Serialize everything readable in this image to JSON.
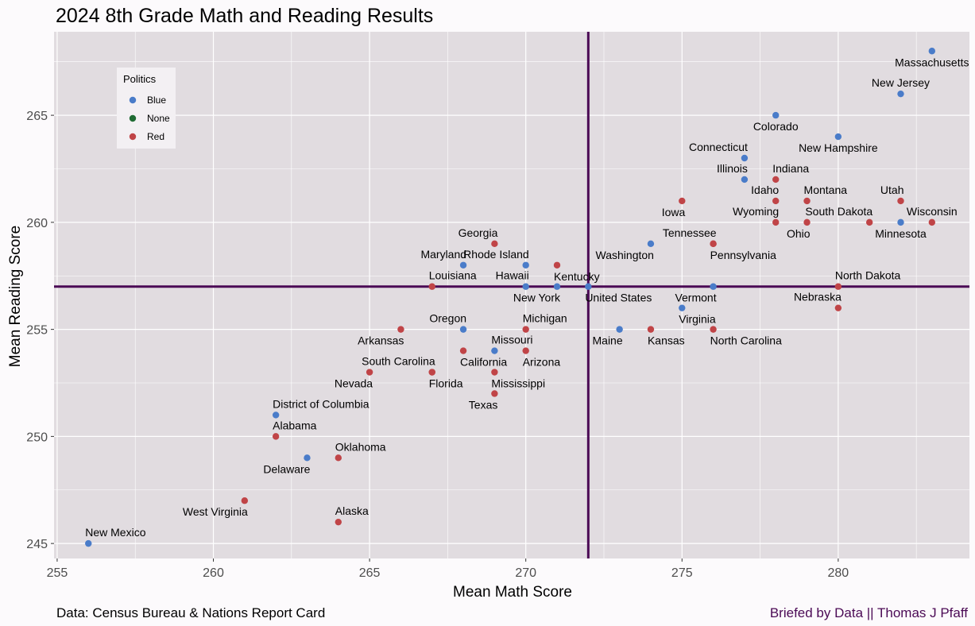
{
  "chart_data": {
    "type": "scatter",
    "title": "2024 8th Grade Math and Reading Results",
    "xlabel": "Mean Math Score",
    "ylabel": "Mean Reading Score",
    "xlim": [
      254.9,
      284.2
    ],
    "ylim": [
      244.3,
      268.9
    ],
    "x_ticks": [
      255,
      260,
      265,
      270,
      275,
      280
    ],
    "y_ticks": [
      245,
      250,
      255,
      260,
      265
    ],
    "grid": true,
    "reference_lines": {
      "x": 272,
      "y": 257,
      "color": "#4B0A55"
    },
    "legend": {
      "title": "Politics",
      "position": "top-left",
      "entries": [
        {
          "label": "Blue",
          "color": "#4A7CC9"
        },
        {
          "label": "None",
          "color": "#1F6B33"
        },
        {
          "label": "Red",
          "color": "#C04447"
        }
      ]
    },
    "colors": {
      "Blue": "#4A7CC9",
      "None": "#1F6B33",
      "Red": "#C04447"
    },
    "points": [
      {
        "label": "Massachusetts",
        "x": 283,
        "y": 268,
        "party": "Blue",
        "lpos": "below"
      },
      {
        "label": "New Jersey",
        "x": 282,
        "y": 266,
        "party": "Blue",
        "lpos": "above"
      },
      {
        "label": "Colorado",
        "x": 278,
        "y": 265,
        "party": "Blue",
        "lpos": "below"
      },
      {
        "label": "New Hampshire",
        "x": 280,
        "y": 264,
        "party": "Blue",
        "lpos": "below"
      },
      {
        "label": "Connecticut",
        "x": 277,
        "y": 263,
        "party": "Blue",
        "lpos": "above-left"
      },
      {
        "label": "Illinois",
        "x": 277,
        "y": 262,
        "party": "Blue",
        "lpos": "above-left"
      },
      {
        "label": "Indiana",
        "x": 278,
        "y": 262,
        "party": "Red",
        "lpos": "above-right"
      },
      {
        "label": "Idaho",
        "x": 278,
        "y": 261,
        "party": "Red",
        "lpos": "above-left"
      },
      {
        "label": "Montana",
        "x": 279,
        "y": 261,
        "party": "Red",
        "lpos": "above-right"
      },
      {
        "label": "Utah",
        "x": 282,
        "y": 261,
        "party": "Red",
        "lpos": "above-left"
      },
      {
        "label": "Iowa",
        "x": 275,
        "y": 261,
        "party": "Red",
        "lpos": "below-left"
      },
      {
        "label": "Wyoming",
        "x": 278,
        "y": 260,
        "party": "Red",
        "lpos": "above-left"
      },
      {
        "label": "Ohio",
        "x": 279,
        "y": 260,
        "party": "Red",
        "lpos": "below-left"
      },
      {
        "label": "South Dakota",
        "x": 281,
        "y": 260,
        "party": "Red",
        "lpos": "above-left"
      },
      {
        "label": "Minnesota",
        "x": 282,
        "y": 260,
        "party": "Blue",
        "lpos": "below"
      },
      {
        "label": "Wisconsin",
        "x": 283,
        "y": 260,
        "party": "Red",
        "lpos": "above"
      },
      {
        "label": "Tennessee",
        "x": 276,
        "y": 259,
        "party": "Red",
        "lpos": "above-left"
      },
      {
        "label": "Pennsylvania",
        "x": 276,
        "y": 259,
        "party": "Red",
        "lpos": "below-right"
      },
      {
        "label": "Washington",
        "x": 274,
        "y": 259,
        "party": "Blue",
        "lpos": "below-left"
      },
      {
        "label": "Georgia",
        "x": 269,
        "y": 259,
        "party": "Red",
        "lpos": "above-left"
      },
      {
        "label": "Maryland",
        "x": 268,
        "y": 258,
        "party": "Blue",
        "lpos": "above-left"
      },
      {
        "label": "Rhode Island",
        "x": 270,
        "y": 258,
        "party": "Blue",
        "lpos": "above-left"
      },
      {
        "label": "Kentucky",
        "x": 271,
        "y": 258,
        "party": "Red",
        "lpos": "below-right"
      },
      {
        "label": "Louisiana",
        "x": 267,
        "y": 257,
        "party": "Red",
        "lpos": "above-right"
      },
      {
        "label": "Hawaii",
        "x": 270,
        "y": 257,
        "party": "Blue",
        "lpos": "above-left"
      },
      {
        "label": "New York",
        "x": 271,
        "y": 257,
        "party": "Blue",
        "lpos": "below-left"
      },
      {
        "label": "United States",
        "x": 272,
        "y": 257,
        "party": "Blue",
        "lpos": "below-right"
      },
      {
        "label": "Vermont",
        "x": 276,
        "y": 257,
        "party": "Blue",
        "lpos": "below-left"
      },
      {
        "label": "North Dakota",
        "x": 280,
        "y": 257,
        "party": "Red",
        "lpos": "above-right"
      },
      {
        "label": "Nebraska",
        "x": 280,
        "y": 256,
        "party": "Red",
        "lpos": "above-left"
      },
      {
        "label": "Virginia",
        "x": 275,
        "y": 256,
        "party": "Blue",
        "lpos": "below-right"
      },
      {
        "label": "Maine",
        "x": 273,
        "y": 255,
        "party": "Blue",
        "lpos": "below-left"
      },
      {
        "label": "Kansas",
        "x": 274,
        "y": 255,
        "party": "Red",
        "lpos": "below-right"
      },
      {
        "label": "North Carolina",
        "x": 276,
        "y": 255,
        "party": "Red",
        "lpos": "below-right"
      },
      {
        "label": "Oregon",
        "x": 268,
        "y": 255,
        "party": "Blue",
        "lpos": "above-left"
      },
      {
        "label": "Michigan",
        "x": 270,
        "y": 255,
        "party": "Red",
        "lpos": "above-right"
      },
      {
        "label": "Arkansas",
        "x": 266,
        "y": 255,
        "party": "Red",
        "lpos": "below-left"
      },
      {
        "label": "Missouri",
        "x": 269,
        "y": 254,
        "party": "Blue",
        "lpos": "above-right"
      },
      {
        "label": "California",
        "x": 268,
        "y": 254,
        "party": "Red",
        "lpos": "below-right"
      },
      {
        "label": "Arizona",
        "x": 270,
        "y": 254,
        "party": "Red",
        "lpos": "below-right"
      },
      {
        "label": "South Carolina",
        "x": 267,
        "y": 253,
        "party": "Red",
        "lpos": "above-left"
      },
      {
        "label": "Florida",
        "x": 267,
        "y": 253,
        "party": "Red",
        "lpos": "below-right"
      },
      {
        "label": "Mississippi",
        "x": 269,
        "y": 253,
        "party": "Red",
        "lpos": "below-right"
      },
      {
        "label": "Nevada",
        "x": 265,
        "y": 253,
        "party": "Red",
        "lpos": "below-left"
      },
      {
        "label": "Texas",
        "x": 269,
        "y": 252,
        "party": "Red",
        "lpos": "below-left"
      },
      {
        "label": "District of Columbia",
        "x": 262,
        "y": 251,
        "party": "Blue",
        "lpos": "above-right"
      },
      {
        "label": "Alabama",
        "x": 262,
        "y": 250,
        "party": "Red",
        "lpos": "above-right"
      },
      {
        "label": "Delaware",
        "x": 263,
        "y": 249,
        "party": "Blue",
        "lpos": "below-left"
      },
      {
        "label": "Oklahoma",
        "x": 264,
        "y": 249,
        "party": "Red",
        "lpos": "above-right"
      },
      {
        "label": "West Virginia",
        "x": 261,
        "y": 247,
        "party": "Red",
        "lpos": "below-left"
      },
      {
        "label": "Alaska",
        "x": 264,
        "y": 246,
        "party": "Red",
        "lpos": "above-right"
      },
      {
        "label": "New Mexico",
        "x": 256,
        "y": 245,
        "party": "Blue",
        "lpos": "above-right"
      }
    ]
  },
  "caption_left": "Data: Census Bureau & Nations Report Card",
  "caption_right": "Briefed by Data || Thomas J Pfaff"
}
